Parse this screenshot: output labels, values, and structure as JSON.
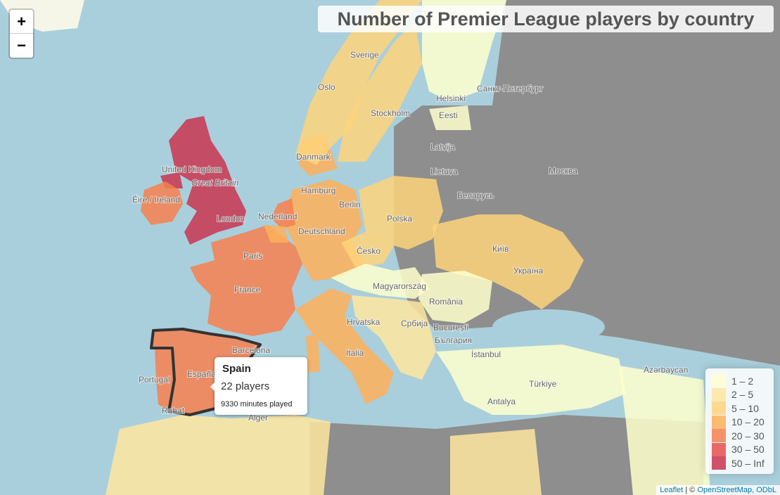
{
  "title": "Number of Premier League players by country",
  "zoom": {
    "in": "+",
    "out": "−"
  },
  "popup": {
    "country": "Spain",
    "players": "22 players",
    "minutes": "9330 minutes played"
  },
  "legend": [
    {
      "label": "1 – 2",
      "color": "#ffffcc"
    },
    {
      "label": "2 – 5",
      "color": "#ffe6a0"
    },
    {
      "label": "5 – 10",
      "color": "#fed47a"
    },
    {
      "label": "10 – 20",
      "color": "#feb05a"
    },
    {
      "label": "20 – 30",
      "color": "#f7804f"
    },
    {
      "label": "30 – 50",
      "color": "#e9504e"
    },
    {
      "label": "50 – Inf",
      "color": "#c9354f"
    }
  ],
  "attribution": {
    "leaflet": "Leaflet",
    "copy": "| ©",
    "osm": "OpenStreetMap, ODbL"
  },
  "place_labels": [
    "Sverige",
    "Oslo",
    "Stockholm",
    "Helsinki",
    "Санкт-Петербург",
    "Eesti",
    "Latvija",
    "Lietuva",
    "Москва",
    "Беларусь",
    "Danmark",
    "Hamburg",
    "Berlin",
    "Nederland",
    "Deutschland",
    "Polska",
    "Česko",
    "Київ",
    "Україна",
    "Paris",
    "France",
    "Magyarország",
    "România",
    "București",
    "България",
    "Hrvatska",
    "Србија",
    "Italia",
    "Barcelona",
    "España",
    "Portugal",
    "Rabat",
    "Alger",
    "Türkiye",
    "Antalya",
    "İstanbul",
    "United Kingdom",
    "Great Britain",
    "Éire / Ireland",
    "London",
    "Azərbaycan"
  ]
}
